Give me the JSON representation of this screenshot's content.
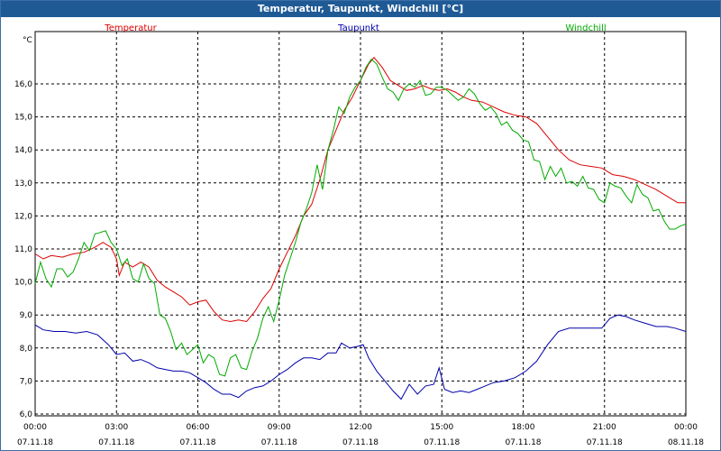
{
  "window": {
    "title": "Temperatur, Taupunkt, Windchill [°C]"
  },
  "chart_data": {
    "type": "line",
    "title": "Temperatur, Taupunkt, Windchill [°C]",
    "ylabel": "°C",
    "xlabel": "",
    "ylim": [
      6.0,
      17.0
    ],
    "xlim": [
      0,
      24
    ],
    "y_ticks": [
      "6,0",
      "7,0",
      "8,0",
      "9,0",
      "10,0",
      "11,0",
      "12,0",
      "13,0",
      "14,0",
      "15,0",
      "16,0"
    ],
    "x_ticks": [
      {
        "time": "00:00",
        "date": "07.11.18"
      },
      {
        "time": "03:00",
        "date": "07.11.18"
      },
      {
        "time": "06:00",
        "date": "07.11.18"
      },
      {
        "time": "09:00",
        "date": "07.11.18"
      },
      {
        "time": "12:00",
        "date": "07.11.18"
      },
      {
        "time": "15:00",
        "date": "07.11.18"
      },
      {
        "time": "18:00",
        "date": "07.11.18"
      },
      {
        "time": "21:00",
        "date": "07.11.18"
      },
      {
        "time": "00:00",
        "date": "08.11.18"
      }
    ],
    "grid": true,
    "legend": "top",
    "series": [
      {
        "name": "Temperatur",
        "color": "#dd0000",
        "points": [
          [
            0.0,
            10.85
          ],
          [
            0.3,
            10.7
          ],
          [
            0.6,
            10.8
          ],
          [
            1.0,
            10.75
          ],
          [
            1.4,
            10.85
          ],
          [
            1.8,
            10.9
          ],
          [
            2.2,
            11.05
          ],
          [
            2.5,
            11.2
          ],
          [
            2.8,
            11.05
          ],
          [
            3.0,
            10.7
          ],
          [
            3.1,
            10.2
          ],
          [
            3.3,
            10.6
          ],
          [
            3.6,
            10.45
          ],
          [
            3.9,
            10.6
          ],
          [
            4.2,
            10.45
          ],
          [
            4.5,
            10.05
          ],
          [
            4.8,
            9.85
          ],
          [
            5.1,
            9.7
          ],
          [
            5.4,
            9.55
          ],
          [
            5.7,
            9.3
          ],
          [
            6.0,
            9.4
          ],
          [
            6.3,
            9.45
          ],
          [
            6.6,
            9.1
          ],
          [
            6.9,
            8.85
          ],
          [
            7.2,
            8.8
          ],
          [
            7.5,
            8.85
          ],
          [
            7.8,
            8.8
          ],
          [
            8.1,
            9.1
          ],
          [
            8.4,
            9.5
          ],
          [
            8.7,
            9.8
          ],
          [
            9.0,
            10.4
          ],
          [
            9.3,
            10.9
          ],
          [
            9.6,
            11.4
          ],
          [
            9.9,
            12.0
          ],
          [
            10.2,
            12.35
          ],
          [
            10.5,
            13.1
          ],
          [
            10.8,
            14.0
          ],
          [
            11.1,
            14.6
          ],
          [
            11.4,
            15.2
          ],
          [
            11.7,
            15.6
          ],
          [
            12.0,
            16.1
          ],
          [
            12.3,
            16.6
          ],
          [
            12.5,
            16.8
          ],
          [
            12.8,
            16.5
          ],
          [
            13.1,
            16.1
          ],
          [
            13.4,
            15.95
          ],
          [
            13.7,
            15.8
          ],
          [
            14.0,
            15.85
          ],
          [
            14.3,
            15.95
          ],
          [
            14.6,
            15.85
          ],
          [
            14.9,
            15.8
          ],
          [
            15.2,
            15.85
          ],
          [
            15.5,
            15.75
          ],
          [
            15.8,
            15.6
          ],
          [
            16.1,
            15.5
          ],
          [
            16.5,
            15.45
          ],
          [
            16.9,
            15.3
          ],
          [
            17.3,
            15.15
          ],
          [
            17.7,
            15.05
          ],
          [
            18.1,
            15.0
          ],
          [
            18.5,
            14.8
          ],
          [
            18.9,
            14.4
          ],
          [
            19.3,
            14.0
          ],
          [
            19.7,
            13.7
          ],
          [
            20.1,
            13.55
          ],
          [
            20.5,
            13.5
          ],
          [
            20.9,
            13.45
          ],
          [
            21.3,
            13.25
          ],
          [
            21.7,
            13.2
          ],
          [
            22.1,
            13.1
          ],
          [
            22.5,
            12.95
          ],
          [
            22.9,
            12.8
          ],
          [
            23.3,
            12.6
          ],
          [
            23.7,
            12.4
          ],
          [
            24.0,
            12.4
          ]
        ]
      },
      {
        "name": "Taupunkt",
        "color": "#0000aa",
        "points": [
          [
            0.0,
            8.7
          ],
          [
            0.3,
            8.55
          ],
          [
            0.7,
            8.5
          ],
          [
            1.1,
            8.5
          ],
          [
            1.5,
            8.45
          ],
          [
            1.9,
            8.5
          ],
          [
            2.3,
            8.4
          ],
          [
            2.7,
            8.1
          ],
          [
            3.0,
            7.8
          ],
          [
            3.3,
            7.85
          ],
          [
            3.6,
            7.6
          ],
          [
            3.9,
            7.65
          ],
          [
            4.2,
            7.55
          ],
          [
            4.5,
            7.4
          ],
          [
            4.8,
            7.35
          ],
          [
            5.1,
            7.3
          ],
          [
            5.4,
            7.3
          ],
          [
            5.7,
            7.25
          ],
          [
            6.0,
            7.1
          ],
          [
            6.3,
            6.95
          ],
          [
            6.6,
            6.75
          ],
          [
            6.9,
            6.6
          ],
          [
            7.2,
            6.6
          ],
          [
            7.5,
            6.5
          ],
          [
            7.8,
            6.7
          ],
          [
            8.1,
            6.8
          ],
          [
            8.4,
            6.85
          ],
          [
            8.7,
            7.0
          ],
          [
            9.0,
            7.2
          ],
          [
            9.3,
            7.35
          ],
          [
            9.6,
            7.55
          ],
          [
            9.9,
            7.7
          ],
          [
            10.2,
            7.7
          ],
          [
            10.5,
            7.65
          ],
          [
            10.8,
            7.85
          ],
          [
            11.1,
            7.85
          ],
          [
            11.3,
            8.15
          ],
          [
            11.6,
            8.0
          ],
          [
            11.9,
            8.05
          ],
          [
            12.1,
            8.1
          ],
          [
            12.3,
            7.7
          ],
          [
            12.6,
            7.3
          ],
          [
            12.9,
            7.0
          ],
          [
            13.2,
            6.7
          ],
          [
            13.5,
            6.45
          ],
          [
            13.8,
            6.9
          ],
          [
            14.1,
            6.6
          ],
          [
            14.4,
            6.85
          ],
          [
            14.7,
            6.9
          ],
          [
            14.9,
            7.4
          ],
          [
            15.1,
            6.75
          ],
          [
            15.4,
            6.65
          ],
          [
            15.7,
            6.7
          ],
          [
            16.0,
            6.65
          ],
          [
            16.3,
            6.75
          ],
          [
            16.6,
            6.85
          ],
          [
            16.9,
            6.95
          ],
          [
            17.3,
            7.0
          ],
          [
            17.7,
            7.1
          ],
          [
            18.1,
            7.3
          ],
          [
            18.5,
            7.6
          ],
          [
            18.9,
            8.1
          ],
          [
            19.3,
            8.5
          ],
          [
            19.7,
            8.6
          ],
          [
            20.1,
            8.6
          ],
          [
            20.5,
            8.6
          ],
          [
            20.9,
            8.6
          ],
          [
            21.2,
            8.9
          ],
          [
            21.5,
            9.0
          ],
          [
            21.8,
            8.95
          ],
          [
            22.1,
            8.85
          ],
          [
            22.5,
            8.75
          ],
          [
            22.9,
            8.65
          ],
          [
            23.3,
            8.65
          ],
          [
            23.6,
            8.6
          ],
          [
            24.0,
            8.5
          ]
        ]
      },
      {
        "name": "Windchill",
        "color": "#00aa00",
        "points": [
          [
            0.0,
            9.95
          ],
          [
            0.2,
            10.6
          ],
          [
            0.4,
            10.1
          ],
          [
            0.6,
            9.85
          ],
          [
            0.8,
            10.4
          ],
          [
            1.0,
            10.4
          ],
          [
            1.2,
            10.15
          ],
          [
            1.4,
            10.3
          ],
          [
            1.6,
            10.7
          ],
          [
            1.8,
            11.2
          ],
          [
            2.0,
            10.95
          ],
          [
            2.2,
            11.45
          ],
          [
            2.4,
            11.5
          ],
          [
            2.6,
            11.55
          ],
          [
            2.8,
            11.2
          ],
          [
            3.0,
            11.0
          ],
          [
            3.2,
            10.5
          ],
          [
            3.4,
            10.7
          ],
          [
            3.6,
            10.1
          ],
          [
            3.8,
            10.0
          ],
          [
            4.0,
            10.55
          ],
          [
            4.2,
            10.1
          ],
          [
            4.4,
            9.95
          ],
          [
            4.6,
            9.0
          ],
          [
            4.8,
            8.9
          ],
          [
            5.0,
            8.5
          ],
          [
            5.2,
            7.95
          ],
          [
            5.4,
            8.15
          ],
          [
            5.6,
            7.8
          ],
          [
            5.8,
            7.95
          ],
          [
            6.0,
            8.1
          ],
          [
            6.2,
            7.55
          ],
          [
            6.4,
            7.8
          ],
          [
            6.6,
            7.7
          ],
          [
            6.8,
            7.2
          ],
          [
            7.0,
            7.15
          ],
          [
            7.2,
            7.7
          ],
          [
            7.4,
            7.8
          ],
          [
            7.6,
            7.4
          ],
          [
            7.8,
            7.35
          ],
          [
            8.0,
            7.9
          ],
          [
            8.2,
            8.3
          ],
          [
            8.4,
            8.9
          ],
          [
            8.6,
            9.25
          ],
          [
            8.8,
            8.8
          ],
          [
            9.0,
            9.45
          ],
          [
            9.2,
            10.2
          ],
          [
            9.4,
            10.7
          ],
          [
            9.6,
            11.2
          ],
          [
            9.8,
            11.8
          ],
          [
            10.0,
            12.2
          ],
          [
            10.2,
            12.7
          ],
          [
            10.4,
            13.55
          ],
          [
            10.6,
            12.8
          ],
          [
            10.8,
            14.0
          ],
          [
            11.0,
            14.6
          ],
          [
            11.2,
            15.3
          ],
          [
            11.4,
            15.1
          ],
          [
            11.6,
            15.6
          ],
          [
            11.8,
            15.9
          ],
          [
            12.0,
            16.1
          ],
          [
            12.2,
            16.5
          ],
          [
            12.4,
            16.75
          ],
          [
            12.6,
            16.6
          ],
          [
            12.8,
            16.2
          ],
          [
            13.0,
            15.85
          ],
          [
            13.2,
            15.75
          ],
          [
            13.4,
            15.5
          ],
          [
            13.6,
            15.85
          ],
          [
            13.8,
            16.0
          ],
          [
            14.0,
            15.9
          ],
          [
            14.2,
            16.1
          ],
          [
            14.4,
            15.65
          ],
          [
            14.6,
            15.7
          ],
          [
            14.8,
            15.9
          ],
          [
            15.0,
            15.9
          ],
          [
            15.2,
            15.8
          ],
          [
            15.4,
            15.65
          ],
          [
            15.6,
            15.5
          ],
          [
            15.8,
            15.6
          ],
          [
            16.0,
            15.85
          ],
          [
            16.2,
            15.7
          ],
          [
            16.4,
            15.4
          ],
          [
            16.6,
            15.2
          ],
          [
            16.8,
            15.3
          ],
          [
            17.0,
            15.1
          ],
          [
            17.2,
            14.75
          ],
          [
            17.4,
            14.85
          ],
          [
            17.6,
            14.6
          ],
          [
            17.8,
            14.5
          ],
          [
            18.0,
            14.3
          ],
          [
            18.2,
            14.25
          ],
          [
            18.4,
            13.7
          ],
          [
            18.6,
            13.65
          ],
          [
            18.8,
            13.1
          ],
          [
            19.0,
            13.5
          ],
          [
            19.2,
            13.2
          ],
          [
            19.4,
            13.45
          ],
          [
            19.6,
            13.0
          ],
          [
            19.8,
            13.05
          ],
          [
            20.0,
            12.9
          ],
          [
            20.2,
            13.2
          ],
          [
            20.4,
            12.85
          ],
          [
            20.6,
            12.8
          ],
          [
            20.8,
            12.5
          ],
          [
            21.0,
            12.4
          ],
          [
            21.2,
            13.0
          ],
          [
            21.4,
            12.9
          ],
          [
            21.6,
            12.85
          ],
          [
            21.8,
            12.6
          ],
          [
            22.0,
            12.4
          ],
          [
            22.2,
            12.95
          ],
          [
            22.4,
            12.65
          ],
          [
            22.6,
            12.55
          ],
          [
            22.8,
            12.15
          ],
          [
            23.0,
            12.2
          ],
          [
            23.2,
            11.85
          ],
          [
            23.4,
            11.6
          ],
          [
            23.6,
            11.6
          ],
          [
            23.8,
            11.7
          ],
          [
            24.0,
            11.75
          ]
        ]
      }
    ]
  }
}
